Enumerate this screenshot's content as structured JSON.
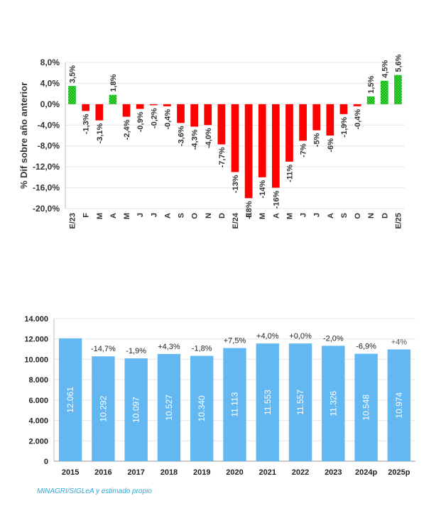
{
  "source": "MINAGRI/SIGLeA y estimado propio",
  "colors": {
    "positive": "#33dd33",
    "negative": "#ff0000",
    "bar2": "#63b8f2",
    "grid": "#e6e6e6",
    "source_text": "#2aa8d8"
  },
  "chart_data": [
    {
      "type": "bar",
      "ylabel": "% Dif sobre año anterior",
      "ylim": [
        -20,
        8
      ],
      "yticks": [
        "8,0%",
        "4,0%",
        "0,0%",
        "-4,0%",
        "-8,0%",
        "-12,0%",
        "-16,0%",
        "-20,0%"
      ],
      "yticks_values": [
        8,
        4,
        0,
        -4,
        -8,
        -12,
        -16,
        -20
      ],
      "grid": true,
      "categories": [
        "E/23",
        "F",
        "M",
        "A",
        "M",
        "J",
        "J",
        "A",
        "S",
        "O",
        "N",
        "D",
        "E/24",
        "F",
        "M",
        "A",
        "M",
        "J",
        "J",
        "A",
        "S",
        "O",
        "N",
        "D",
        "E/25"
      ],
      "values": [
        3.5,
        -1.3,
        -3.1,
        1.8,
        -2.4,
        -0.9,
        -0.2,
        -0.4,
        -3.6,
        -4.3,
        -4.0,
        -7.7,
        -13,
        -18,
        -14,
        -16,
        -11,
        -7,
        -5,
        -6,
        -1.9,
        -0.4,
        1.5,
        4.5,
        5.6
      ],
      "data_labels": [
        "3,5%",
        "-1,3%",
        "-3,1%",
        "1,8%",
        "-2,4%",
        "-0,9%",
        "-0,2%",
        "-0,4%",
        "-3,6%",
        "-4,3%",
        "-4,0%",
        "-7,7%",
        "-13%",
        "-18%",
        "-14%",
        "-16%",
        "-11%",
        "-7%",
        "-5%",
        "-6%",
        "-1,9%",
        "-0,4%",
        "1,5%",
        "4,5%",
        "5,6%"
      ]
    },
    {
      "type": "bar",
      "ylim": [
        0,
        14000
      ],
      "yticks": [
        "14.000",
        "12.000",
        "10.000",
        "8.000",
        "6.000",
        "4.000",
        "2.000",
        "0"
      ],
      "yticks_values": [
        14000,
        12000,
        10000,
        8000,
        6000,
        4000,
        2000,
        0
      ],
      "grid": true,
      "categories": [
        "2015",
        "2016",
        "2017",
        "2018",
        "2019",
        "2020",
        "2021",
        "2022",
        "2023",
        "2024p",
        "2025p"
      ],
      "values": [
        12061,
        10292,
        10097,
        10527,
        10340,
        11113,
        11553,
        11557,
        11326,
        10548,
        10974
      ],
      "value_labels": [
        "12.061",
        "10.292",
        "10.097",
        "10.527",
        "10.340",
        "11.113",
        "11.553",
        "11.557",
        "11.326",
        "10.548",
        "10.974"
      ],
      "change_labels": [
        "",
        "-14,7%",
        "-1,9%",
        "+4,3%",
        "-1,8%",
        "+7,5%",
        "+4,0%",
        "+0,0%",
        "-2,0%",
        "-6,9%",
        "+4%"
      ]
    }
  ]
}
